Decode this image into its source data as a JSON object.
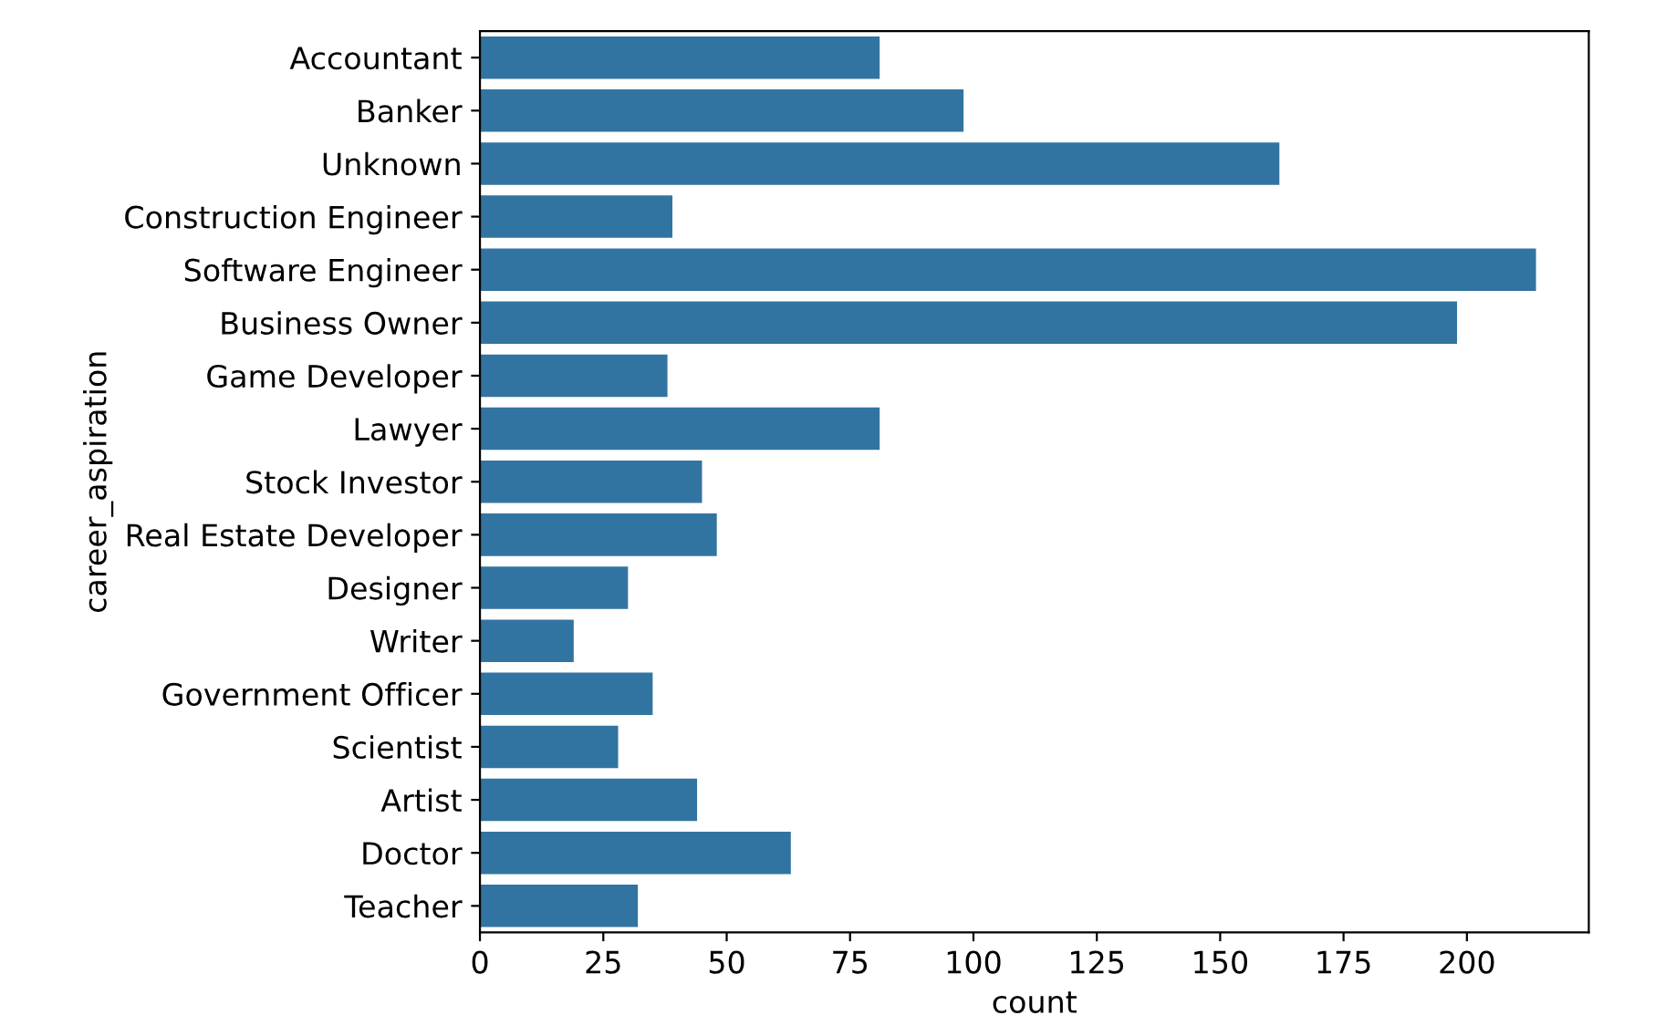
{
  "chart_data": {
    "type": "bar",
    "orientation": "horizontal",
    "xlabel": "count",
    "ylabel": "career_aspiration",
    "categories": [
      "Accountant",
      "Banker",
      "Unknown",
      "Construction Engineer",
      "Software Engineer",
      "Business Owner",
      "Game Developer",
      "Lawyer",
      "Stock Investor",
      "Real Estate Developer",
      "Designer",
      "Writer",
      "Government Officer",
      "Scientist",
      "Artist",
      "Doctor",
      "Teacher"
    ],
    "values": [
      81,
      98,
      162,
      39,
      214,
      198,
      38,
      81,
      45,
      48,
      30,
      19,
      35,
      28,
      44,
      63,
      32
    ],
    "color": "#3274a1",
    "xlim": [
      0,
      224.7
    ],
    "xticks": [
      0,
      25,
      50,
      75,
      100,
      125,
      150,
      175,
      200
    ],
    "grid": false
  }
}
